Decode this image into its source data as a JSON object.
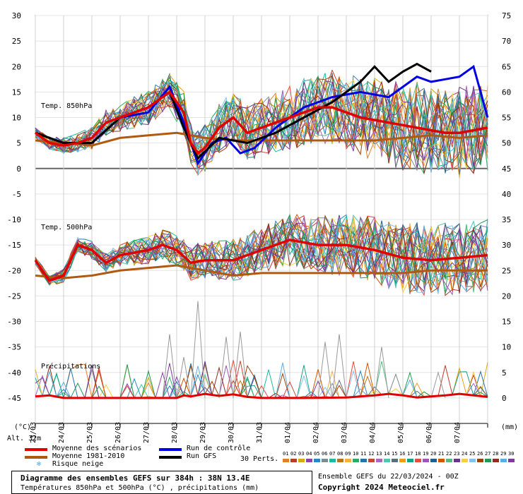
{
  "chart_data": {
    "type": "line",
    "title": "Diagramme des ensembles GEFS sur 384h : 38N 13.4E",
    "subtitle": "Températures 850hPa et 500hPa (°C) , précipitations (mm)",
    "run_info": "Ensemble GEFS du 22/03/2024 - 00Z",
    "copyright": "Copyright 2024 Meteociel.fr",
    "altitude": "Alt. 32m",
    "left_unit": "(°C)",
    "right_unit": "(mm)",
    "x_dates": [
      "23/03",
      "24/03",
      "25/03",
      "26/03",
      "27/03",
      "28/03",
      "29/03",
      "30/03",
      "31/03",
      "01/04",
      "02/04",
      "03/04",
      "04/04",
      "05/04",
      "06/04",
      "07/04"
    ],
    "x_hours_range": [
      0,
      384
    ],
    "ylim_left": [
      -50,
      30
    ],
    "yticks_left": [
      "30",
      "25",
      "20",
      "15",
      "10",
      "5",
      "0",
      "-5",
      "-10",
      "-15",
      "-20",
      "-25",
      "-30",
      "-35",
      "-40",
      "-45"
    ],
    "yticks_right": [
      "75",
      "70",
      "65",
      "60",
      "55",
      "50",
      "45",
      "40",
      "35",
      "30",
      "25",
      "20",
      "15",
      "10",
      "5",
      "0"
    ],
    "panel_labels": [
      "Temp. 850hPa",
      "Temp. 500hPa",
      "Précipitations"
    ],
    "t850": {
      "mean_scenarios": [
        [
          0,
          7
        ],
        [
          12,
          5
        ],
        [
          24,
          4.5
        ],
        [
          36,
          5
        ],
        [
          48,
          6
        ],
        [
          60,
          9
        ],
        [
          72,
          10
        ],
        [
          84,
          11
        ],
        [
          96,
          12
        ],
        [
          108,
          14
        ],
        [
          114,
          15
        ],
        [
          126,
          11
        ],
        [
          132,
          5
        ],
        [
          138,
          3
        ],
        [
          144,
          4
        ],
        [
          156,
          8
        ],
        [
          168,
          10
        ],
        [
          180,
          7
        ],
        [
          192,
          8
        ],
        [
          204,
          9
        ],
        [
          216,
          10
        ],
        [
          228,
          11
        ],
        [
          240,
          12
        ],
        [
          252,
          12
        ],
        [
          264,
          11
        ],
        [
          276,
          10
        ],
        [
          288,
          9.5
        ],
        [
          300,
          9
        ],
        [
          312,
          8.5
        ],
        [
          324,
          8
        ],
        [
          336,
          7.5
        ],
        [
          348,
          7
        ],
        [
          360,
          7
        ],
        [
          372,
          7.5
        ],
        [
          384,
          8
        ]
      ],
      "climatology": [
        [
          0,
          5.5
        ],
        [
          24,
          5
        ],
        [
          48,
          4.5
        ],
        [
          72,
          6
        ],
        [
          96,
          6.5
        ],
        [
          120,
          7
        ],
        [
          144,
          6
        ],
        [
          168,
          5.5
        ],
        [
          192,
          5.5
        ],
        [
          216,
          5.5
        ],
        [
          240,
          5.5
        ],
        [
          264,
          5.5
        ],
        [
          288,
          5.5
        ],
        [
          312,
          6
        ],
        [
          336,
          6.5
        ],
        [
          360,
          6
        ],
        [
          384,
          6.5
        ]
      ],
      "control_run": [
        [
          0,
          7
        ],
        [
          24,
          5
        ],
        [
          48,
          5
        ],
        [
          72,
          10
        ],
        [
          96,
          11
        ],
        [
          114,
          16
        ],
        [
          126,
          9
        ],
        [
          138,
          1
        ],
        [
          150,
          5
        ],
        [
          162,
          6
        ],
        [
          174,
          3
        ],
        [
          186,
          4
        ],
        [
          204,
          8
        ],
        [
          228,
          12
        ],
        [
          252,
          14
        ],
        [
          276,
          15
        ],
        [
          300,
          14
        ],
        [
          312,
          16
        ],
        [
          324,
          18
        ],
        [
          336,
          17
        ],
        [
          348,
          17.5
        ],
        [
          360,
          18
        ],
        [
          372,
          20
        ],
        [
          384,
          10
        ]
      ],
      "gfs_run": [
        [
          0,
          7
        ],
        [
          24,
          5
        ],
        [
          48,
          5
        ],
        [
          72,
          10
        ],
        [
          96,
          12
        ],
        [
          114,
          15
        ],
        [
          126,
          8
        ],
        [
          138,
          2
        ],
        [
          156,
          6
        ],
        [
          180,
          5
        ],
        [
          204,
          7
        ],
        [
          228,
          10
        ],
        [
          252,
          13
        ],
        [
          264,
          15
        ],
        [
          276,
          17
        ],
        [
          288,
          20
        ],
        [
          300,
          17
        ],
        [
          312,
          19
        ],
        [
          324,
          20.5
        ],
        [
          336,
          19
        ]
      ]
    },
    "t500": {
      "mean_scenarios": [
        [
          0,
          -18
        ],
        [
          12,
          -22
        ],
        [
          24,
          -21
        ],
        [
          36,
          -15
        ],
        [
          48,
          -16
        ],
        [
          60,
          -18.5
        ],
        [
          72,
          -17
        ],
        [
          96,
          -16
        ],
        [
          108,
          -15
        ],
        [
          120,
          -16
        ],
        [
          132,
          -18.5
        ],
        [
          144,
          -18
        ],
        [
          168,
          -18
        ],
        [
          192,
          -16
        ],
        [
          216,
          -14
        ],
        [
          240,
          -15
        ],
        [
          264,
          -15
        ],
        [
          288,
          -16
        ],
        [
          312,
          -17.5
        ],
        [
          336,
          -18
        ],
        [
          360,
          -17.5
        ],
        [
          384,
          -17
        ]
      ],
      "climatology": [
        [
          0,
          -21
        ],
        [
          24,
          -21.5
        ],
        [
          48,
          -21
        ],
        [
          72,
          -20
        ],
        [
          96,
          -19.5
        ],
        [
          120,
          -19
        ],
        [
          144,
          -20
        ],
        [
          168,
          -21
        ],
        [
          192,
          -20.5
        ],
        [
          216,
          -20.5
        ],
        [
          240,
          -20.5
        ],
        [
          264,
          -20.5
        ],
        [
          288,
          -20.5
        ],
        [
          312,
          -20.5
        ],
        [
          336,
          -20
        ],
        [
          360,
          -20
        ],
        [
          384,
          -20
        ]
      ]
    },
    "precip": {
      "mean_scenarios": [
        [
          0,
          0.3
        ],
        [
          12,
          0.5
        ],
        [
          24,
          0
        ],
        [
          120,
          0
        ],
        [
          126,
          0.5
        ],
        [
          132,
          0.3
        ],
        [
          144,
          0.8
        ],
        [
          156,
          0.4
        ],
        [
          168,
          0.7
        ],
        [
          180,
          0.2
        ],
        [
          192,
          0
        ],
        [
          228,
          0
        ],
        [
          264,
          0.1
        ],
        [
          288,
          0.5
        ],
        [
          300,
          0.8
        ],
        [
          312,
          0.5
        ],
        [
          324,
          0.1
        ],
        [
          348,
          0.5
        ],
        [
          360,
          0.8
        ],
        [
          384,
          0.2
        ]
      ],
      "spikes": [
        [
          114,
          12.5
        ],
        [
          126,
          8
        ],
        [
          138,
          19
        ],
        [
          162,
          12
        ],
        [
          174,
          13
        ],
        [
          246,
          11
        ],
        [
          258,
          12.5
        ],
        [
          294,
          10
        ],
        [
          342,
          5
        ]
      ]
    },
    "legend": [
      {
        "label": "Moyenne des scénarios",
        "color": "#e00000"
      },
      {
        "label": "Moyenne 1981-2010",
        "color": "#b05a10"
      },
      {
        "label": "Run de contrôle",
        "color": "#0000e0"
      },
      {
        "label": "Run GFS",
        "color": "#000000"
      },
      {
        "label": "Risque neige",
        "color": "#4aa8e8"
      }
    ],
    "perts_label": "30 Perts.",
    "perts_numbers": [
      "01",
      "02",
      "03",
      "04",
      "05",
      "06",
      "07",
      "08",
      "09",
      "10",
      "11",
      "12",
      "13",
      "14",
      "15",
      "16",
      "17",
      "18",
      "19",
      "20",
      "21",
      "22",
      "23",
      "24",
      "25",
      "26",
      "27",
      "28",
      "29",
      "30"
    ],
    "perts_colors": [
      "#e67e22",
      "#c0392b",
      "#d4ac0d",
      "#8e44ad",
      "#2e86c1",
      "#7f8c8d",
      "#1abc9c",
      "#b9770e",
      "#f5b041",
      "#27ae60",
      "#2874a6",
      "#cb4335",
      "#a569bd",
      "#48c9b0",
      "#5d6d7e",
      "#f39c12",
      "#16a085",
      "#e74c3c",
      "#9b59b6",
      "#1f618d",
      "#d35400",
      "#52be80",
      "#6c3483",
      "#f4d03f",
      "#85c1e9",
      "#a04000",
      "#229954",
      "#922b21",
      "#5dade2",
      "#7d3c98"
    ]
  }
}
